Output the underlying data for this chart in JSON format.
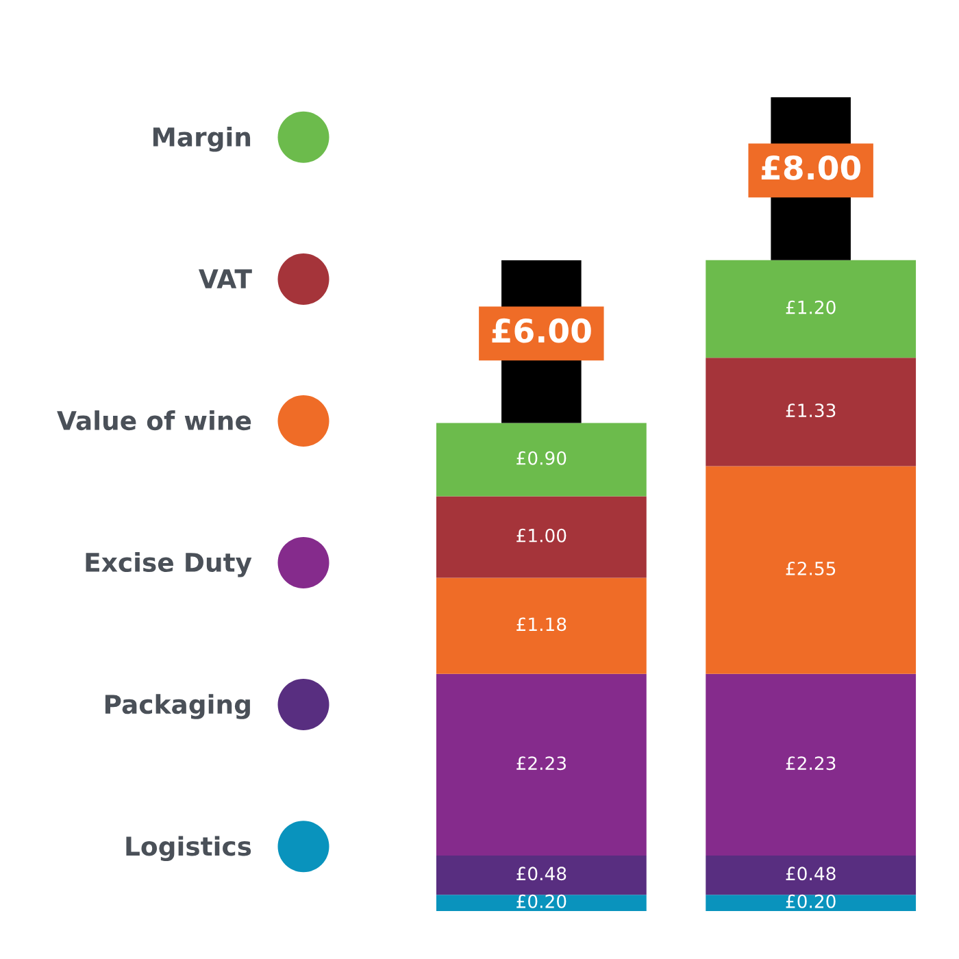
{
  "chart_data": {
    "type": "bar",
    "stacked": true,
    "categories": [
      null,
      null
    ],
    "series": [
      {
        "name": "Logistics",
        "color": "#0993bd",
        "values": [
          0.2,
          0.2
        ],
        "value_labels": [
          "£0.20",
          "£0.20"
        ]
      },
      {
        "name": "Packaging",
        "color": "#582e80",
        "values": [
          0.48,
          0.48
        ],
        "value_labels": [
          "£0.48",
          "£0.48"
        ]
      },
      {
        "name": "Excise Duty",
        "color": "#852b8c",
        "values": [
          2.23,
          2.23
        ],
        "value_labels": [
          "£2.23",
          "£2.23"
        ]
      },
      {
        "name": "Value of wine",
        "color": "#ef6c27",
        "values": [
          1.18,
          2.55
        ],
        "value_labels": [
          "£1.18",
          "£2.55"
        ]
      },
      {
        "name": "VAT",
        "color": "#a5343a",
        "values": [
          1.0,
          1.33
        ],
        "value_labels": [
          "£1.00",
          "£1.33"
        ]
      },
      {
        "name": "Margin",
        "color": "#6cbb4c",
        "values": [
          0.9,
          1.2
        ],
        "value_labels": [
          "£0.90",
          "£1.20"
        ]
      }
    ],
    "totals": [
      "£6.00",
      "£8.00"
    ],
    "legend": "left"
  }
}
